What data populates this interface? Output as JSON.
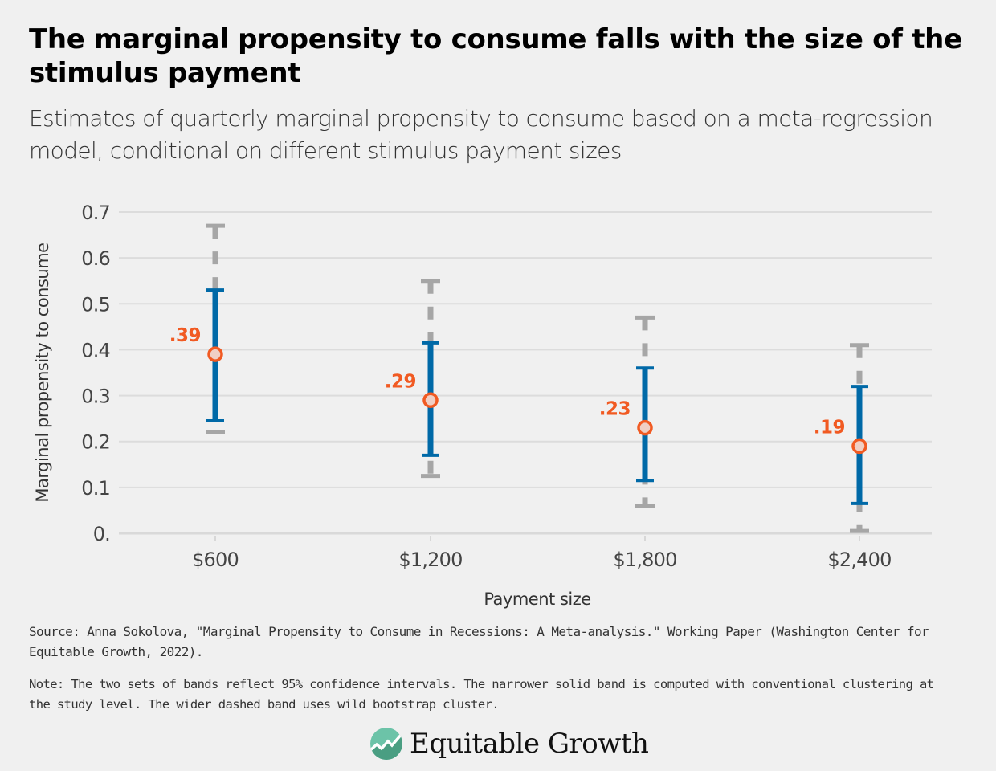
{
  "header": {
    "title": "The marginal propensity to consume falls with the size of the stimulus payment",
    "subtitle": "Estimates of quarterly marginal propensity to consume based on a meta-regression model, conditional on different stimulus payment sizes"
  },
  "chart_data": {
    "type": "scatter",
    "title": "The marginal propensity to consume falls with the size of the stimulus payment",
    "subtitle": "Estimates of quarterly marginal propensity to consume based on a meta-regression model, conditional on different stimulus payment sizes",
    "xlabel": "Payment size",
    "ylabel": "Marginal propensity to consume",
    "ylim": [
      0,
      0.7
    ],
    "yticks": [
      0,
      0.1,
      0.2,
      0.3,
      0.4,
      0.5,
      0.6,
      0.7
    ],
    "ytick_labels": [
      "0.",
      "0.1",
      "0.2",
      "0.3",
      "0.4",
      "0.5",
      "0.6",
      "0.7"
    ],
    "grid": true,
    "categories": [
      "$600",
      "$1,200",
      "$1,800",
      "$2,400"
    ],
    "series": [
      {
        "name": "Point estimate",
        "values": [
          0.39,
          0.29,
          0.23,
          0.19
        ],
        "labels": [
          ".39",
          ".29",
          ".23",
          ".19"
        ],
        "color": "#f15a22"
      },
      {
        "name": "95% CI, conventional clustering at study level (solid band)",
        "low": [
          0.245,
          0.17,
          0.115,
          0.065
        ],
        "high": [
          0.53,
          0.415,
          0.36,
          0.32
        ],
        "color": "#0069a7"
      },
      {
        "name": "95% CI, wild bootstrap cluster (dashed band)",
        "low": [
          0.22,
          0.125,
          0.06,
          0.005
        ],
        "high": [
          0.67,
          0.55,
          0.47,
          0.41
        ],
        "color": "#a6a6a6"
      }
    ]
  },
  "footer": {
    "source": "Source: Anna Sokolova, \"Marginal Propensity to Consume in Recessions: A Meta-analysis.\" Working Paper (Washington Center for Equitable Growth, 2022).",
    "note": "Note: The two sets of bands reflect 95% confidence intervals. The narrower solid band is computed with conventional clustering at the study level. The wider dashed band uses wild bootstrap cluster.",
    "logo_text": "Equitable Growth",
    "logo_icon": "rising-line-chart-circle-icon"
  }
}
